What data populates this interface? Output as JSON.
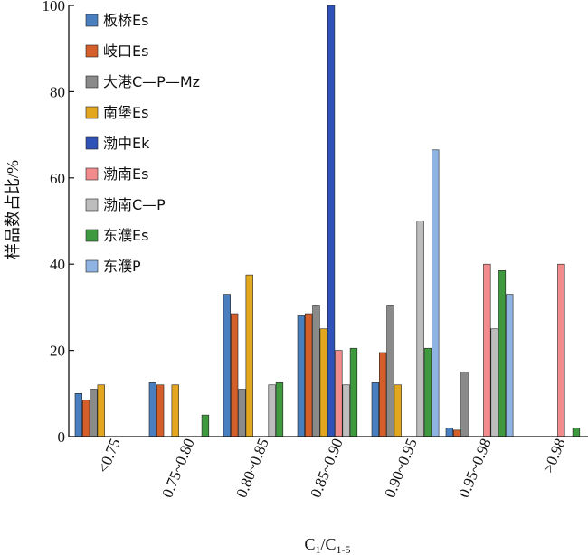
{
  "chart_data": {
    "type": "bar",
    "title": "",
    "xlabel": "C1/C1-5",
    "ylabel": "样品数占比/%",
    "ylim": [
      0,
      100
    ],
    "yticks": [
      0,
      20,
      40,
      60,
      80,
      100
    ],
    "categories": [
      "<0.75",
      "0.75~0.80",
      "0.80~0.85",
      "0.85~0.90",
      "0.90~0.95",
      "0.95~0.98",
      ">0.98"
    ],
    "legend_placement": "top-left",
    "series": [
      {
        "name": "板桥Es",
        "color": "#4a7fbf",
        "values": [
          10,
          12.5,
          33,
          28,
          12.5,
          2,
          0
        ]
      },
      {
        "name": "岐口Es",
        "color": "#d45f2a",
        "values": [
          8.5,
          12,
          28.5,
          28.5,
          19.5,
          1.5,
          0
        ]
      },
      {
        "name": "大港C—P—Mz",
        "color": "#8a8a8a",
        "values": [
          11,
          0,
          11,
          30.5,
          30.5,
          15,
          0
        ]
      },
      {
        "name": "南堡Es",
        "color": "#e3a71f",
        "values": [
          12,
          12,
          37.5,
          25,
          12,
          0,
          0
        ]
      },
      {
        "name": "渤中Ek",
        "color": "#2f52b8",
        "values": [
          0,
          0,
          0,
          100,
          0,
          0,
          0
        ]
      },
      {
        "name": "渤南Es",
        "color": "#f28c8c",
        "values": [
          0,
          0,
          0,
          20,
          0,
          40,
          40
        ]
      },
      {
        "name": "渤南C—P",
        "color": "#bdbdbd",
        "values": [
          0,
          0,
          12,
          12,
          50,
          25,
          0
        ]
      },
      {
        "name": "东濮Es",
        "color": "#3f9a3f",
        "values": [
          0,
          5,
          12.5,
          20.5,
          20.5,
          38.5,
          2
        ]
      },
      {
        "name": "东濮P",
        "color": "#8fb4e3",
        "values": [
          0,
          0,
          0,
          0,
          66.5,
          33,
          0
        ]
      }
    ]
  }
}
